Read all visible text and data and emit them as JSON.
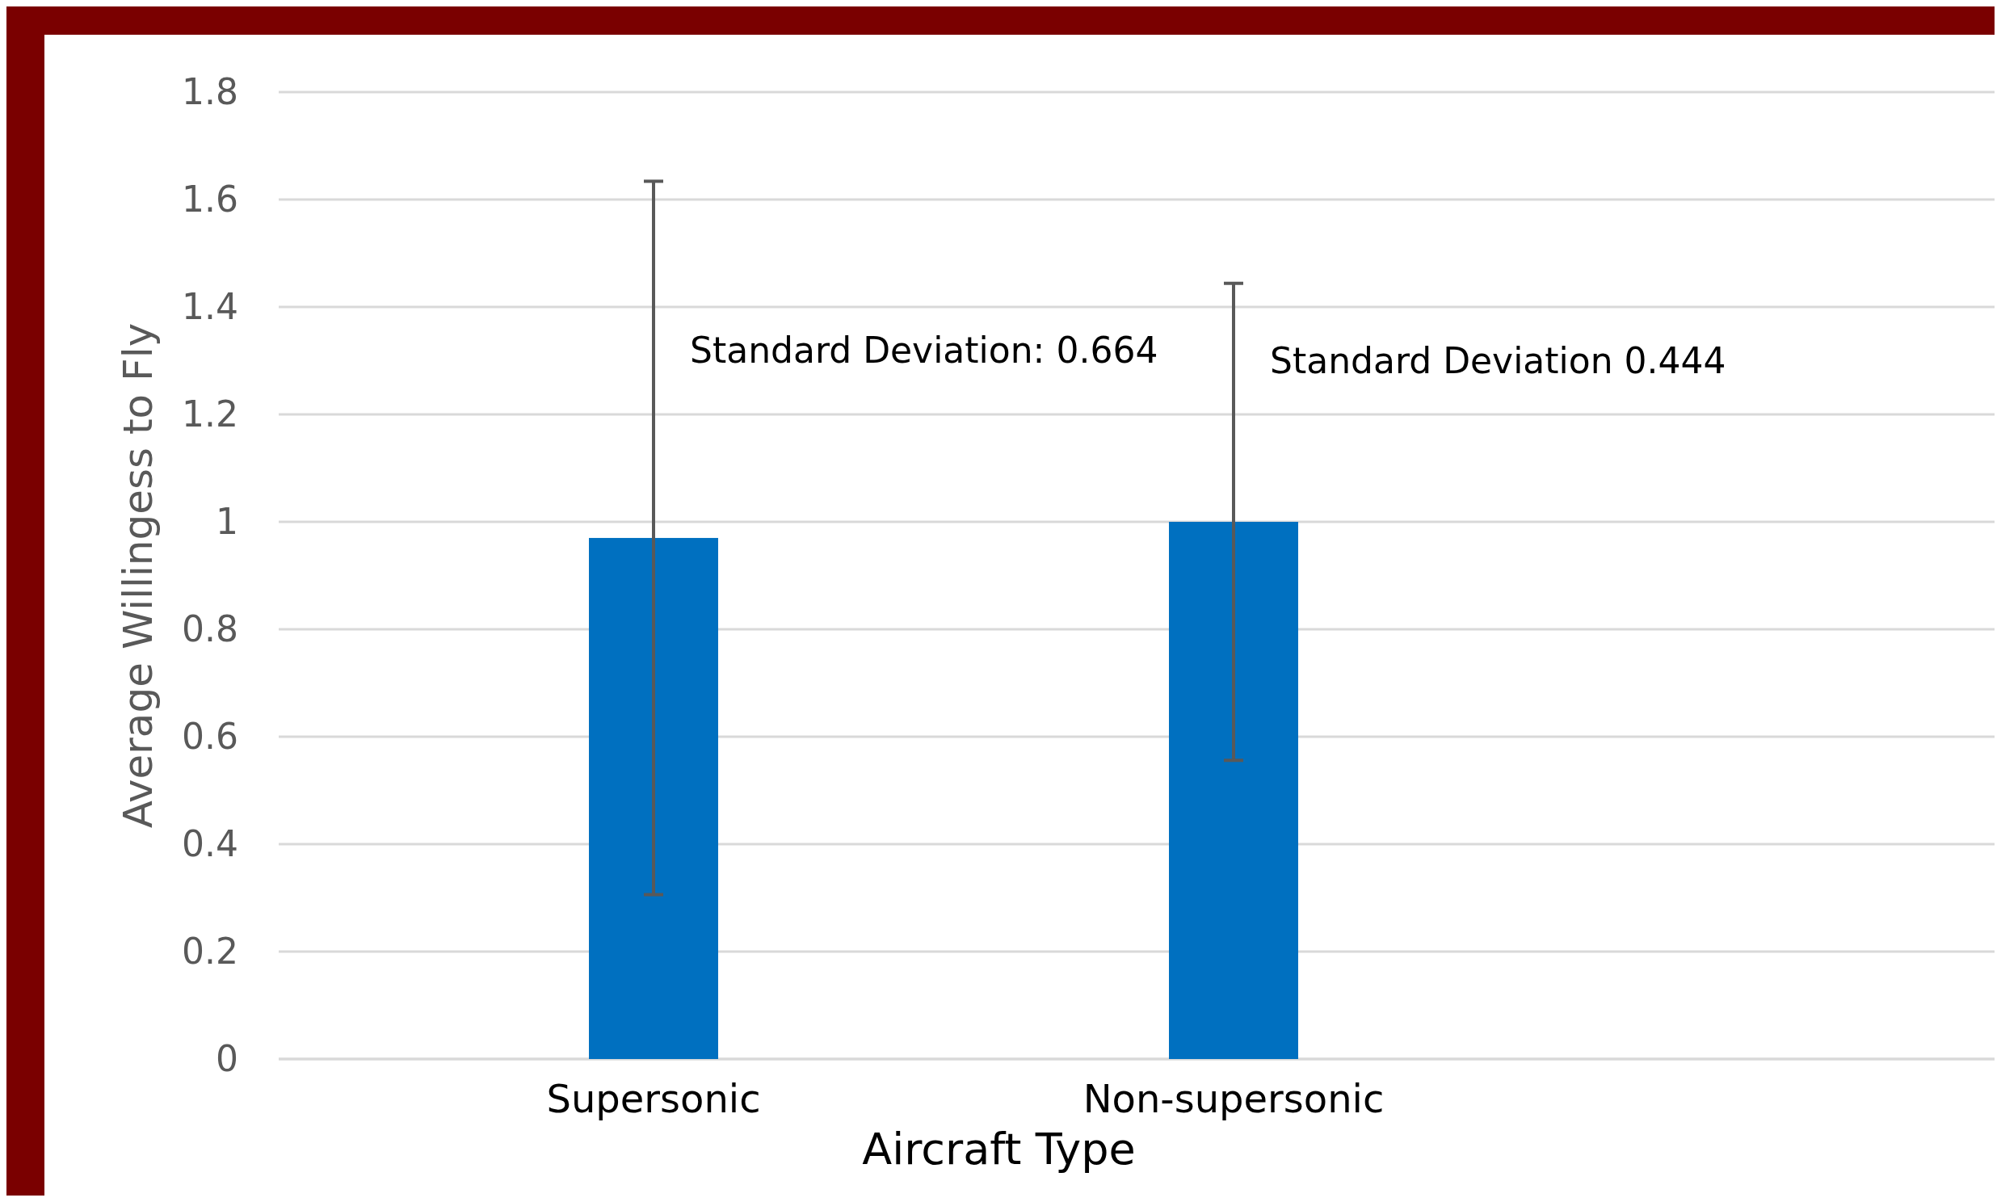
{
  "chart_data": {
    "type": "bar",
    "xlabel": "Aircraft Type",
    "ylabel": "Average Willingess to Fly",
    "categories": [
      "Supersonic",
      "Non-supersonic"
    ],
    "values": [
      0.97,
      1.0
    ],
    "errors": [
      0.664,
      0.444
    ],
    "color": "#0070c0",
    "ylim": [
      0,
      1.8
    ],
    "yticks": [
      0,
      0.2,
      0.4,
      0.6,
      0.8,
      1,
      1.2,
      1.4,
      1.6,
      1.8
    ],
    "grid": "y",
    "annotations": [
      {
        "text": "Standard Deviation: 0.664",
        "x": "Supersonic",
        "y": 1.32
      },
      {
        "text": "Standard Deviation 0.444",
        "x": "Non-supersonic",
        "y": 1.3
      }
    ]
  }
}
